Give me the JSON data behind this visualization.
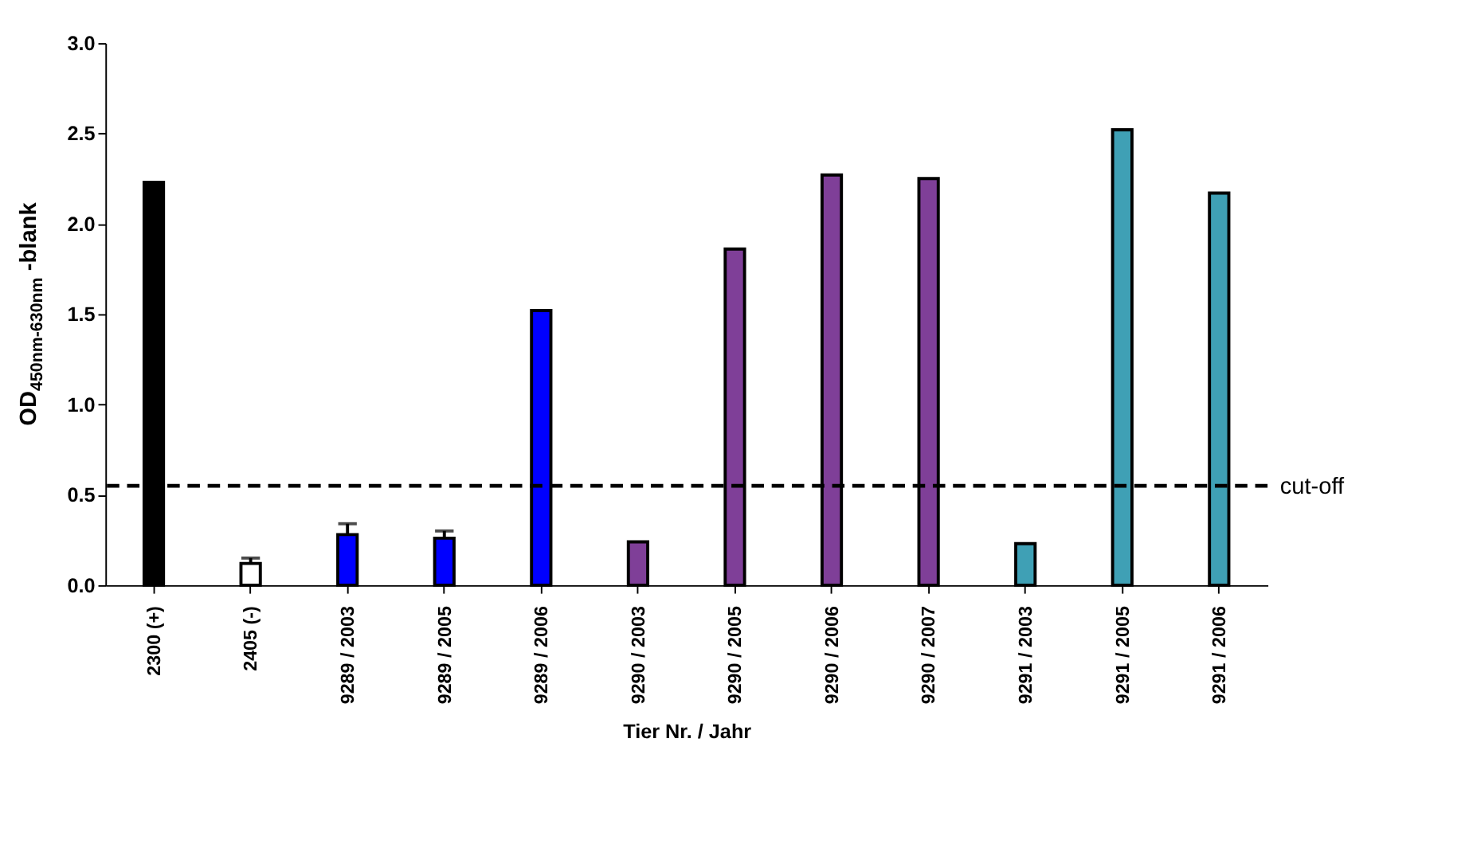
{
  "chart_data": {
    "type": "bar",
    "categories": [
      "2300 (+)",
      "2405 (-)",
      "9289 / 2003",
      "9289 / 2005",
      "9289 / 2006",
      "9290 / 2003",
      "9290 / 2005",
      "9290 / 2006",
      "9290 / 2007",
      "9291 / 2003",
      "9291 / 2005",
      "9291 / 2006"
    ],
    "values": [
      2.23,
      0.12,
      0.28,
      0.26,
      1.52,
      0.24,
      1.86,
      2.27,
      2.25,
      0.23,
      2.52,
      2.17
    ],
    "errors": [
      null,
      0.03,
      0.06,
      0.04,
      null,
      null,
      null,
      null,
      null,
      null,
      null,
      null
    ],
    "colors": [
      "#000000",
      "#ffffff",
      "#0000ff",
      "#0000ff",
      "#0000ff",
      "#7f3f98",
      "#7f3f98",
      "#7f3f98",
      "#7f3f98",
      "#3fa0b5",
      "#3fa0b5",
      "#3fa0b5"
    ],
    "xlabel": "Tier Nr. / Jahr",
    "ylabel": "OD$_{450nm-630nm}$ -blank",
    "ylim": [
      0,
      3.0
    ],
    "yticks": [
      {
        "value": 0,
        "label": "0.0"
      },
      {
        "value": 0.5,
        "label": "0.5"
      },
      {
        "value": 1,
        "label": "1.0"
      },
      {
        "value": 1.5,
        "label": "1.5"
      },
      {
        "value": 2,
        "label": "2.0"
      },
      {
        "value": 2.5,
        "label": "2.5"
      },
      {
        "value": 3,
        "label": "3.0"
      }
    ],
    "ref_lines": [
      {
        "axis": "y",
        "value": 0.55,
        "label": "cut-off",
        "line_style": "dashed",
        "color": "#000000"
      }
    ],
    "grid": false
  }
}
